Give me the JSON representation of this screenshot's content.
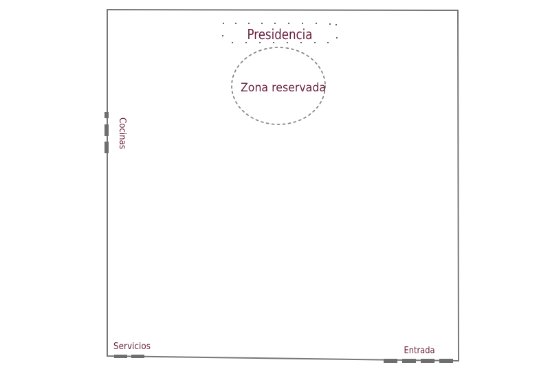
{
  "floorplan": {
    "labels": {
      "presidencia": "Presidencia",
      "zona_reservada": "Zona reservada",
      "cocinas": "Cocinas",
      "servicios": "Servicios",
      "entrada": "Entrada"
    },
    "colors": {
      "wall": "#777777",
      "door": "#6e6e6e",
      "label": "#6a1f3e",
      "dots": "#555555",
      "background": "#ffffff"
    }
  }
}
